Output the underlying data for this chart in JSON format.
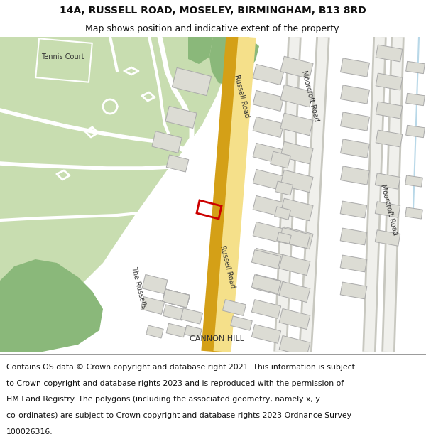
{
  "title": "14A, RUSSELL ROAD, MOSELEY, BIRMINGHAM, B13 8RD",
  "subtitle": "Map shows position and indicative extent of the property.",
  "footer": "Contains OS data © Crown copyright and database right 2021. This information is subject to Crown copyright and database rights 2023 and is reproduced with the permission of HM Land Registry. The polygons (including the associated geometry, namely x, y co-ordinates) are subject to Crown copyright and database rights 2023 Ordnance Survey 100026316.",
  "title_fontsize": 10,
  "subtitle_fontsize": 9,
  "footer_fontsize": 7.8,
  "map_bg": "#f0f0ec",
  "green_light": "#c8ddb0",
  "green_dark": "#8ab87a",
  "road_yellow": "#f5e08a",
  "road_orange": "#d4a017",
  "road_white": "#ffffff",
  "road_lgray": "#e0e0d8",
  "building_fill": "#dcdcd4",
  "building_edge": "#aaaaaa",
  "plot_edge": "#cc0000",
  "text_dark": "#333333",
  "white": "#ffffff"
}
